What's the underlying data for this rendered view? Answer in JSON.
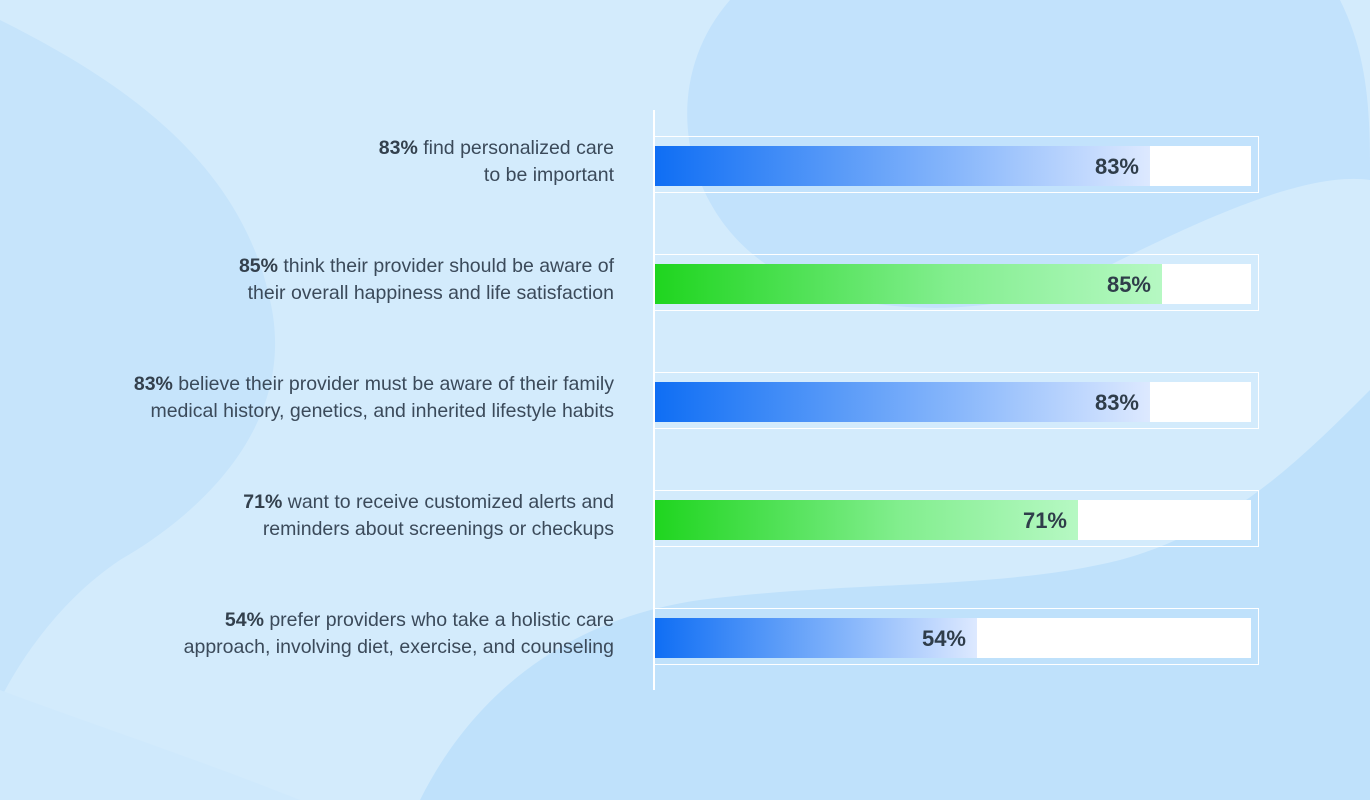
{
  "chart_data": {
    "type": "bar",
    "orientation": "horizontal",
    "xlim": [
      0,
      100
    ],
    "categories": [
      "83% find personalized care to be important",
      "85% think their provider should be aware of their overall happiness and life satisfaction",
      "83% believe their provider must be aware of their family medical history, genetics, and inherited lifestyle habits",
      "71% want to receive customized alerts and reminders about screenings or checkups",
      "54% prefer providers who take a holistic care approach, involving diet, exercise, and counseling"
    ],
    "values": [
      83,
      85,
      83,
      71,
      54
    ],
    "bars": [
      {
        "value": 83,
        "value_label": "83%",
        "color": "blue",
        "label_pct": "83%",
        "label_line1": " find personalized care",
        "label_line2": "to be important"
      },
      {
        "value": 85,
        "value_label": "85%",
        "color": "green",
        "label_pct": "85%",
        "label_line1": " think their provider should be aware of",
        "label_line2": "their overall happiness and life satisfaction"
      },
      {
        "value": 83,
        "value_label": "83%",
        "color": "blue",
        "label_pct": "83%",
        "label_line1": " believe their provider must be aware of their family",
        "label_line2": "medical history, genetics, and inherited lifestyle habits"
      },
      {
        "value": 71,
        "value_label": "71%",
        "color": "green",
        "label_pct": "71%",
        "label_line1": " want to receive customized alerts and",
        "label_line2": "reminders about screenings or checkups"
      },
      {
        "value": 54,
        "value_label": "54%",
        "color": "blue",
        "label_pct": "54%",
        "label_line1": " prefer providers who take a holistic care",
        "label_line2": "approach, involving diet, exercise, and counseling"
      }
    ]
  },
  "colors": {
    "background": "#d3ebfc",
    "blue_start": "#0f6ef4",
    "green_start": "#1fd51f",
    "track": "#ffffff",
    "text": "#3b4a5a"
  }
}
